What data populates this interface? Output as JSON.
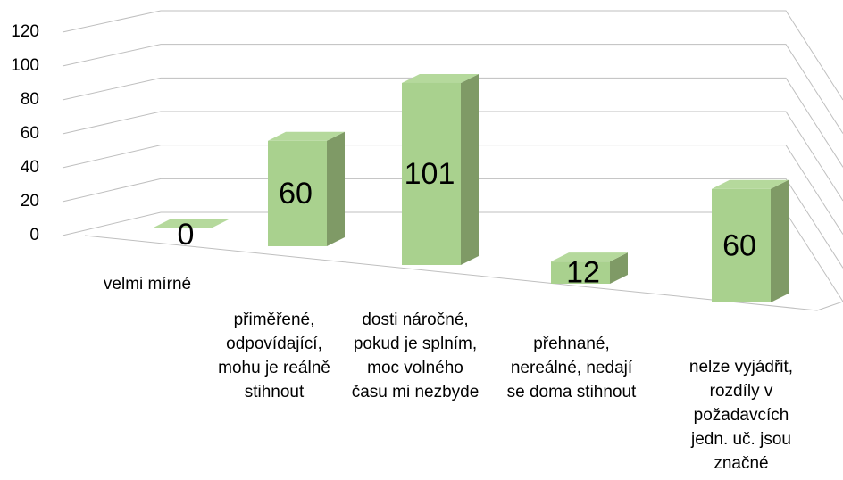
{
  "chart_data": {
    "type": "bar3d",
    "categories": [
      "velmi mírné",
      "přiměřené, odpovídající, mohu je reálně stihnout",
      "dosti náročné, pokud je splním, moc volného času mi nezbyde",
      "přehnané, nereálné, nedají se doma stihnout",
      "nelze vyjádřit, rozdíly v požadavcích jedn. uč. jsou značné"
    ],
    "values": [
      0,
      60,
      101,
      12,
      60
    ],
    "color": "#a9d18e",
    "ylim": [
      0,
      120
    ],
    "yticks": [
      0,
      20,
      40,
      60,
      80,
      100,
      120
    ],
    "grid": true
  }
}
